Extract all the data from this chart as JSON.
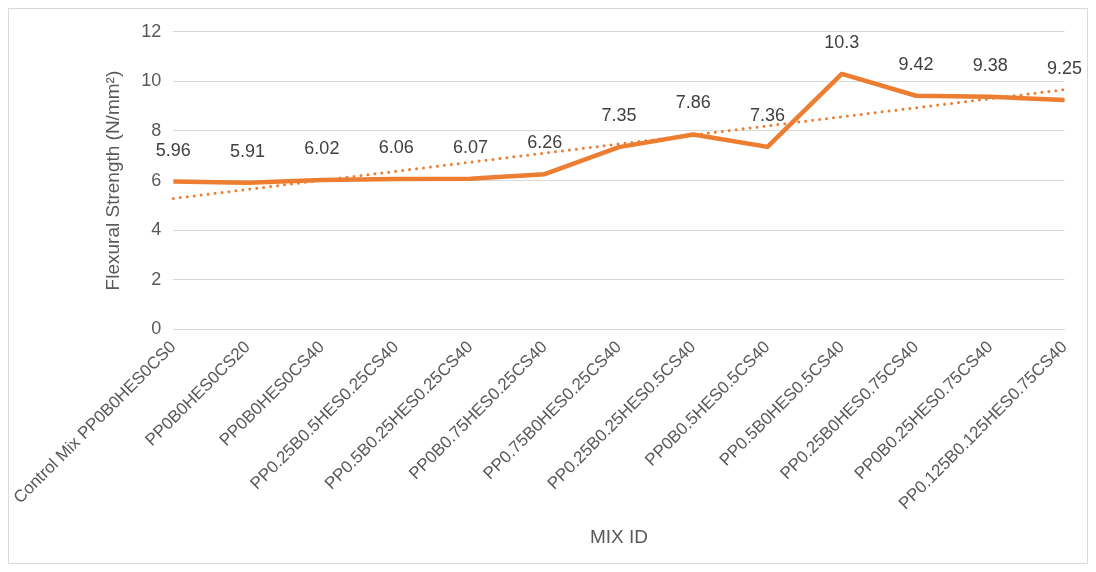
{
  "chart_data": {
    "type": "line",
    "xlabel": "MIX ID",
    "ylabel": "Flexural Strength (N/mm²)",
    "categories": [
      "Control Mix PP0B0HES0CS0",
      "PP0B0HES0CS20",
      "PP0B0HES0CS40",
      "PP0.25B0.5HES0.25CS40",
      "PP0.5B0.25HES0.25CS40",
      "PP0B0.75HES0.25CS40",
      "PP0.75B0HES0.25CS40",
      "PP0.25B0.25HES0.5CS40",
      "PP0B0.5HES0.5CS40",
      "PP0.5B0HES0.5CS40",
      "PP0.25B0HES0.75CS40",
      "PP0B0.25HES0.75CS40",
      "PP0.125B0.125HES0.75CS40"
    ],
    "series": [
      {
        "color": "#ed7d31",
        "values": [
          5.96,
          5.91,
          6.02,
          6.06,
          6.07,
          6.26,
          7.35,
          7.86,
          7.36,
          10.3,
          9.42,
          9.38,
          9.25
        ],
        "value_labels": [
          "5.96",
          "5.91",
          "6.02",
          "6.06",
          "6.07",
          "6.26",
          "7.35",
          "7.86",
          "7.36",
          "10.3",
          "9.42",
          "9.38",
          "9.25"
        ]
      },
      {
        "type": "line",
        "color": "#ed7d31",
        "line_style": "dotted",
        "x": [
          "Control Mix PP0B0HES0CS0",
          "PP0.125B0.125HES0.75CS40"
        ],
        "values": [
          5.28,
          9.67
        ]
      }
    ],
    "ylim": [
      0,
      12
    ],
    "yticks": [
      0,
      2,
      4,
      6,
      8,
      10,
      12
    ],
    "grid": "y",
    "marker": "none",
    "legend": false
  }
}
